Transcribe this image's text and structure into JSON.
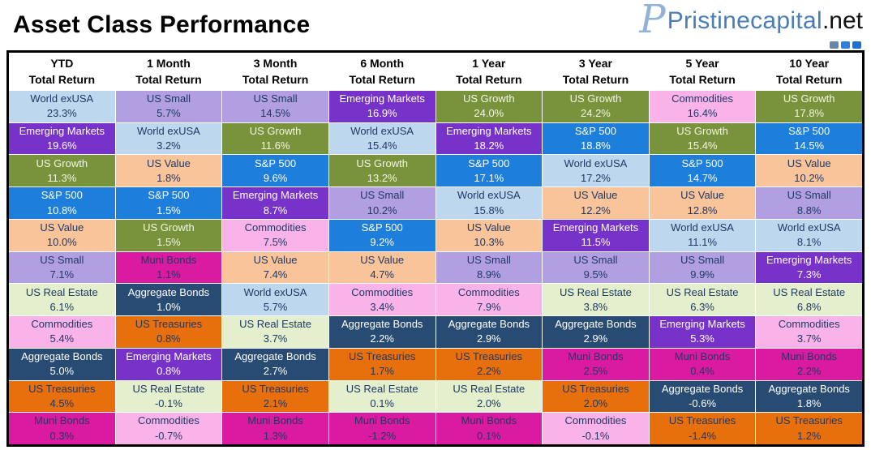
{
  "logo": {
    "monogram": "P",
    "brand": "Pristinecapital",
    "suffix": ".net",
    "socials": [
      {
        "name": "social-icon-1",
        "color": "#6787a8"
      },
      {
        "name": "social-icon-2",
        "color": "#2f7fe0"
      },
      {
        "name": "social-icon-3",
        "color": "#1d6fd2"
      }
    ]
  },
  "chart_data": {
    "type": "table",
    "title": "Asset Class Performance",
    "subtitle_row_label": "Total Return",
    "layout": "periodic-table of ranked asset class returns; 8 period columns, 11 ranked rows each",
    "asset_colors": {
      "World exUSA": {
        "bg": "#BDD7EE",
        "fg": "#1F3864"
      },
      "Emerging Markets": {
        "bg": "#7733C9",
        "fg": "#FFFFFF"
      },
      "US Growth": {
        "bg": "#79933D",
        "fg": "#F2F6E2"
      },
      "S&P 500": {
        "bg": "#1E7EDC",
        "fg": "#FFFFFF"
      },
      "US Value": {
        "bg": "#FAC49A",
        "fg": "#1F3864"
      },
      "US Small": {
        "bg": "#B19FE2",
        "fg": "#1F3864"
      },
      "US Real Estate": {
        "bg": "#E3EFCD",
        "fg": "#1F3864"
      },
      "Commodities": {
        "bg": "#F9B3E9",
        "fg": "#1F3864"
      },
      "Aggregate Bonds": {
        "bg": "#274B73",
        "fg": "#FFFFFF"
      },
      "US Treasuries": {
        "bg": "#E8700C",
        "fg": "#1F3864"
      },
      "Muni Bonds": {
        "bg": "#DB1AA2",
        "fg": "#1F3864"
      }
    },
    "columns": [
      {
        "period": "YTD",
        "subtitle": "Total Return",
        "ranking": [
          {
            "asset": "World exUSA",
            "return": "23.3%"
          },
          {
            "asset": "Emerging Markets",
            "return": "19.6%"
          },
          {
            "asset": "US Growth",
            "return": "11.3%"
          },
          {
            "asset": "S&P 500",
            "return": "10.8%"
          },
          {
            "asset": "US Value",
            "return": "10.0%"
          },
          {
            "asset": "US Small",
            "return": "7.1%"
          },
          {
            "asset": "US Real Estate",
            "return": "6.1%"
          },
          {
            "asset": "Commodities",
            "return": "5.4%"
          },
          {
            "asset": "Aggregate Bonds",
            "return": "5.0%"
          },
          {
            "asset": "US Treasuries",
            "return": "4.5%"
          },
          {
            "asset": "Muni Bonds",
            "return": "0.3%"
          }
        ]
      },
      {
        "period": "1 Month",
        "subtitle": "Total Return",
        "ranking": [
          {
            "asset": "US Small",
            "return": "5.7%"
          },
          {
            "asset": "World exUSA",
            "return": "3.2%"
          },
          {
            "asset": "US Value",
            "return": "1.8%"
          },
          {
            "asset": "S&P 500",
            "return": "1.5%"
          },
          {
            "asset": "US Growth",
            "return": "1.5%"
          },
          {
            "asset": "Muni Bonds",
            "return": "1.1%"
          },
          {
            "asset": "Aggregate Bonds",
            "return": "1.0%"
          },
          {
            "asset": "US Treasuries",
            "return": "0.8%"
          },
          {
            "asset": "Emerging Markets",
            "return": "0.8%"
          },
          {
            "asset": "US Real Estate",
            "return": "-0.1%"
          },
          {
            "asset": "Commodities",
            "return": "-0.7%"
          }
        ]
      },
      {
        "period": "3 Month",
        "subtitle": "Total Return",
        "ranking": [
          {
            "asset": "US Small",
            "return": "14.5%"
          },
          {
            "asset": "US Growth",
            "return": "11.6%"
          },
          {
            "asset": "S&P 500",
            "return": "9.6%"
          },
          {
            "asset": "Emerging Markets",
            "return": "8.7%"
          },
          {
            "asset": "Commodities",
            "return": "7.5%"
          },
          {
            "asset": "US Value",
            "return": "7.4%"
          },
          {
            "asset": "World exUSA",
            "return": "5.7%"
          },
          {
            "asset": "US Real Estate",
            "return": "3.7%"
          },
          {
            "asset": "Aggregate Bonds",
            "return": "2.7%"
          },
          {
            "asset": "US Treasuries",
            "return": "2.1%"
          },
          {
            "asset": "Muni Bonds",
            "return": "1.3%"
          }
        ]
      },
      {
        "period": "6 Month",
        "subtitle": "Total Return",
        "ranking": [
          {
            "asset": "Emerging Markets",
            "return": "16.9%"
          },
          {
            "asset": "World exUSA",
            "return": "15.4%"
          },
          {
            "asset": "US Growth",
            "return": "13.2%"
          },
          {
            "asset": "US Small",
            "return": "10.2%"
          },
          {
            "asset": "S&P 500",
            "return": "9.2%"
          },
          {
            "asset": "US Value",
            "return": "4.7%"
          },
          {
            "asset": "Commodities",
            "return": "3.4%"
          },
          {
            "asset": "Aggregate Bonds",
            "return": "2.2%"
          },
          {
            "asset": "US Treasuries",
            "return": "1.7%"
          },
          {
            "asset": "US Real Estate",
            "return": "0.1%"
          },
          {
            "asset": "Muni Bonds",
            "return": "-1.2%"
          }
        ]
      },
      {
        "period": "1 Year",
        "subtitle": "Total Return",
        "ranking": [
          {
            "asset": "US Growth",
            "return": "24.0%"
          },
          {
            "asset": "Emerging Markets",
            "return": "18.2%"
          },
          {
            "asset": "S&P 500",
            "return": "17.1%"
          },
          {
            "asset": "World exUSA",
            "return": "15.8%"
          },
          {
            "asset": "US Value",
            "return": "10.3%"
          },
          {
            "asset": "US Small",
            "return": "8.9%"
          },
          {
            "asset": "Commodities",
            "return": "7.9%"
          },
          {
            "asset": "Aggregate Bonds",
            "return": "2.9%"
          },
          {
            "asset": "US Treasuries",
            "return": "2.2%"
          },
          {
            "asset": "US Real Estate",
            "return": "2.0%"
          },
          {
            "asset": "Muni Bonds",
            "return": "0.1%"
          }
        ]
      },
      {
        "period": "3 Year",
        "subtitle": "Total Return",
        "ranking": [
          {
            "asset": "US Growth",
            "return": "24.2%"
          },
          {
            "asset": "S&P 500",
            "return": "18.8%"
          },
          {
            "asset": "World exUSA",
            "return": "17.2%"
          },
          {
            "asset": "US Value",
            "return": "12.2%"
          },
          {
            "asset": "Emerging Markets",
            "return": "11.5%"
          },
          {
            "asset": "US Small",
            "return": "9.5%"
          },
          {
            "asset": "US Real Estate",
            "return": "3.8%"
          },
          {
            "asset": "Aggregate Bonds",
            "return": "2.9%"
          },
          {
            "asset": "Muni Bonds",
            "return": "2.5%"
          },
          {
            "asset": "US Treasuries",
            "return": "2.0%"
          },
          {
            "asset": "Commodities",
            "return": "-0.1%"
          }
        ]
      },
      {
        "period": "5 Year",
        "subtitle": "Total Return",
        "ranking": [
          {
            "asset": "Commodities",
            "return": "16.4%"
          },
          {
            "asset": "US Growth",
            "return": "15.4%"
          },
          {
            "asset": "S&P 500",
            "return": "14.7%"
          },
          {
            "asset": "US Value",
            "return": "12.8%"
          },
          {
            "asset": "World exUSA",
            "return": "11.1%"
          },
          {
            "asset": "US Small",
            "return": "9.9%"
          },
          {
            "asset": "US Real Estate",
            "return": "6.3%"
          },
          {
            "asset": "Emerging Markets",
            "return": "5.3%"
          },
          {
            "asset": "Muni Bonds",
            "return": "0.4%"
          },
          {
            "asset": "Aggregate Bonds",
            "return": "-0.6%"
          },
          {
            "asset": "US Treasuries",
            "return": "-1.4%"
          }
        ]
      },
      {
        "period": "10 Year",
        "subtitle": "Total Return",
        "ranking": [
          {
            "asset": "US Growth",
            "return": "17.8%"
          },
          {
            "asset": "S&P 500",
            "return": "14.5%"
          },
          {
            "asset": "US Value",
            "return": "10.2%"
          },
          {
            "asset": "US Small",
            "return": "8.8%"
          },
          {
            "asset": "World exUSA",
            "return": "8.1%"
          },
          {
            "asset": "Emerging Markets",
            "return": "7.3%"
          },
          {
            "asset": "US Real Estate",
            "return": "6.8%"
          },
          {
            "asset": "Commodities",
            "return": "3.7%"
          },
          {
            "asset": "Muni Bonds",
            "return": "2.2%"
          },
          {
            "asset": "Aggregate Bonds",
            "return": "1.8%"
          },
          {
            "asset": "US Treasuries",
            "return": "1.2%"
          }
        ]
      }
    ]
  }
}
